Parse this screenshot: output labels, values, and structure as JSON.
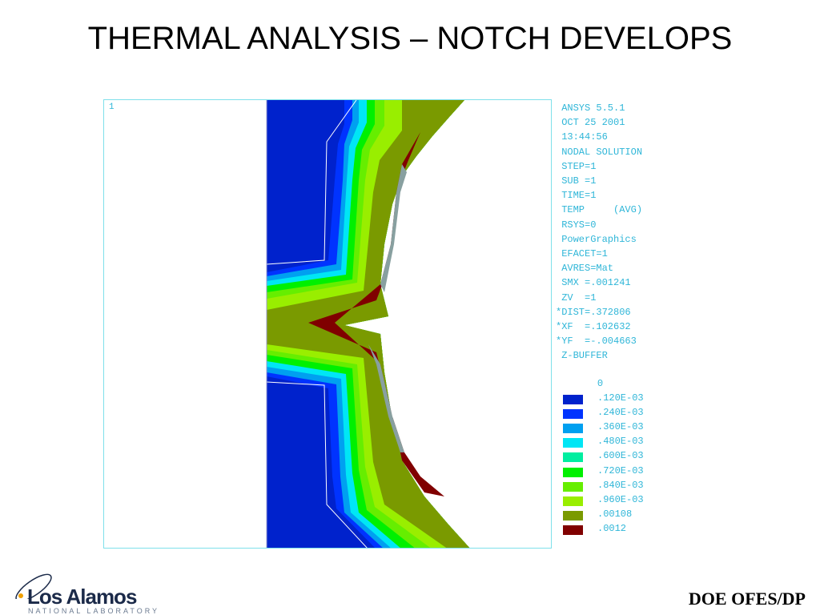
{
  "slide": {
    "title": "THERMAL ANALYSIS – NOTCH DEVELOPS",
    "footer": "DOE OFES/DP"
  },
  "plot": {
    "window_number": "1",
    "info_lines": [
      " ANSYS 5.5.1",
      " OCT 25 2001",
      " 13:44:56",
      " NODAL SOLUTION",
      " STEP=1",
      " SUB =1",
      " TIME=1",
      " TEMP     (AVG)",
      " RSYS=0",
      " PowerGraphics",
      " EFACET=1",
      " AVRES=Mat",
      " SMX =.001241",
      "",
      " ZV  =1",
      "*DIST=.372806",
      "*XF  =.102632",
      "*YF  =-.004663",
      " Z-BUFFER"
    ],
    "legend_zero": "0",
    "legend": [
      {
        "label": ".120E-03",
        "color": "#0022cc"
      },
      {
        "label": ".240E-03",
        "color": "#0033ff"
      },
      {
        "label": ".360E-03",
        "color": "#00a0f0"
      },
      {
        "label": ".480E-03",
        "color": "#00e6f5"
      },
      {
        "label": ".600E-03",
        "color": "#00eea0"
      },
      {
        "label": ".720E-03",
        "color": "#00f000"
      },
      {
        "label": ".840E-03",
        "color": "#66ee00"
      },
      {
        "label": ".960E-03",
        "color": "#99ee00"
      },
      {
        "label": ".00108",
        "color": "#7a9a00"
      },
      {
        "label": ".0012",
        "color": "#800000"
      }
    ]
  },
  "logo": {
    "name": "Los Alamos",
    "subtitle": "NATIONAL LABORATORY"
  }
}
